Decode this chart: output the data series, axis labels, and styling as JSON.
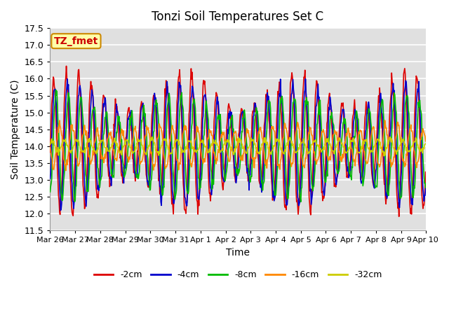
{
  "title": "Tonzi Soil Temperatures Set C",
  "xlabel": "Time",
  "ylabel": "Soil Temperature (C)",
  "ylim": [
    11.5,
    17.5
  ],
  "yticks": [
    11.5,
    12.0,
    12.5,
    13.0,
    13.5,
    14.0,
    14.5,
    15.0,
    15.5,
    16.0,
    16.5,
    17.0,
    17.5
  ],
  "date_labels": [
    "Mar 26",
    "Mar 27",
    "Mar 28",
    "Mar 29",
    "Mar 30",
    "Mar 31",
    "Apr 1",
    "Apr 2",
    "Apr 3",
    "Apr 4",
    "Apr 5",
    "Apr 6",
    "Apr 7",
    "Apr 8",
    "Apr 9",
    "Apr 10"
  ],
  "series_colors": [
    "#dd0000",
    "#0000cc",
    "#00bb00",
    "#ff8800",
    "#cccc00"
  ],
  "series_labels": [
    "-2cm",
    "-4cm",
    "-8cm",
    "-16cm",
    "-32cm"
  ],
  "line_width": 1.2,
  "annotation_text": "TZ_fmet",
  "annotation_bg": "#ffffaa",
  "annotation_border": "#cc8800",
  "annotation_color": "#cc0000",
  "background_color": "#e0e0e0",
  "grid_color": "#ffffff",
  "figsize": [
    6.4,
    4.8
  ],
  "dpi": 100
}
